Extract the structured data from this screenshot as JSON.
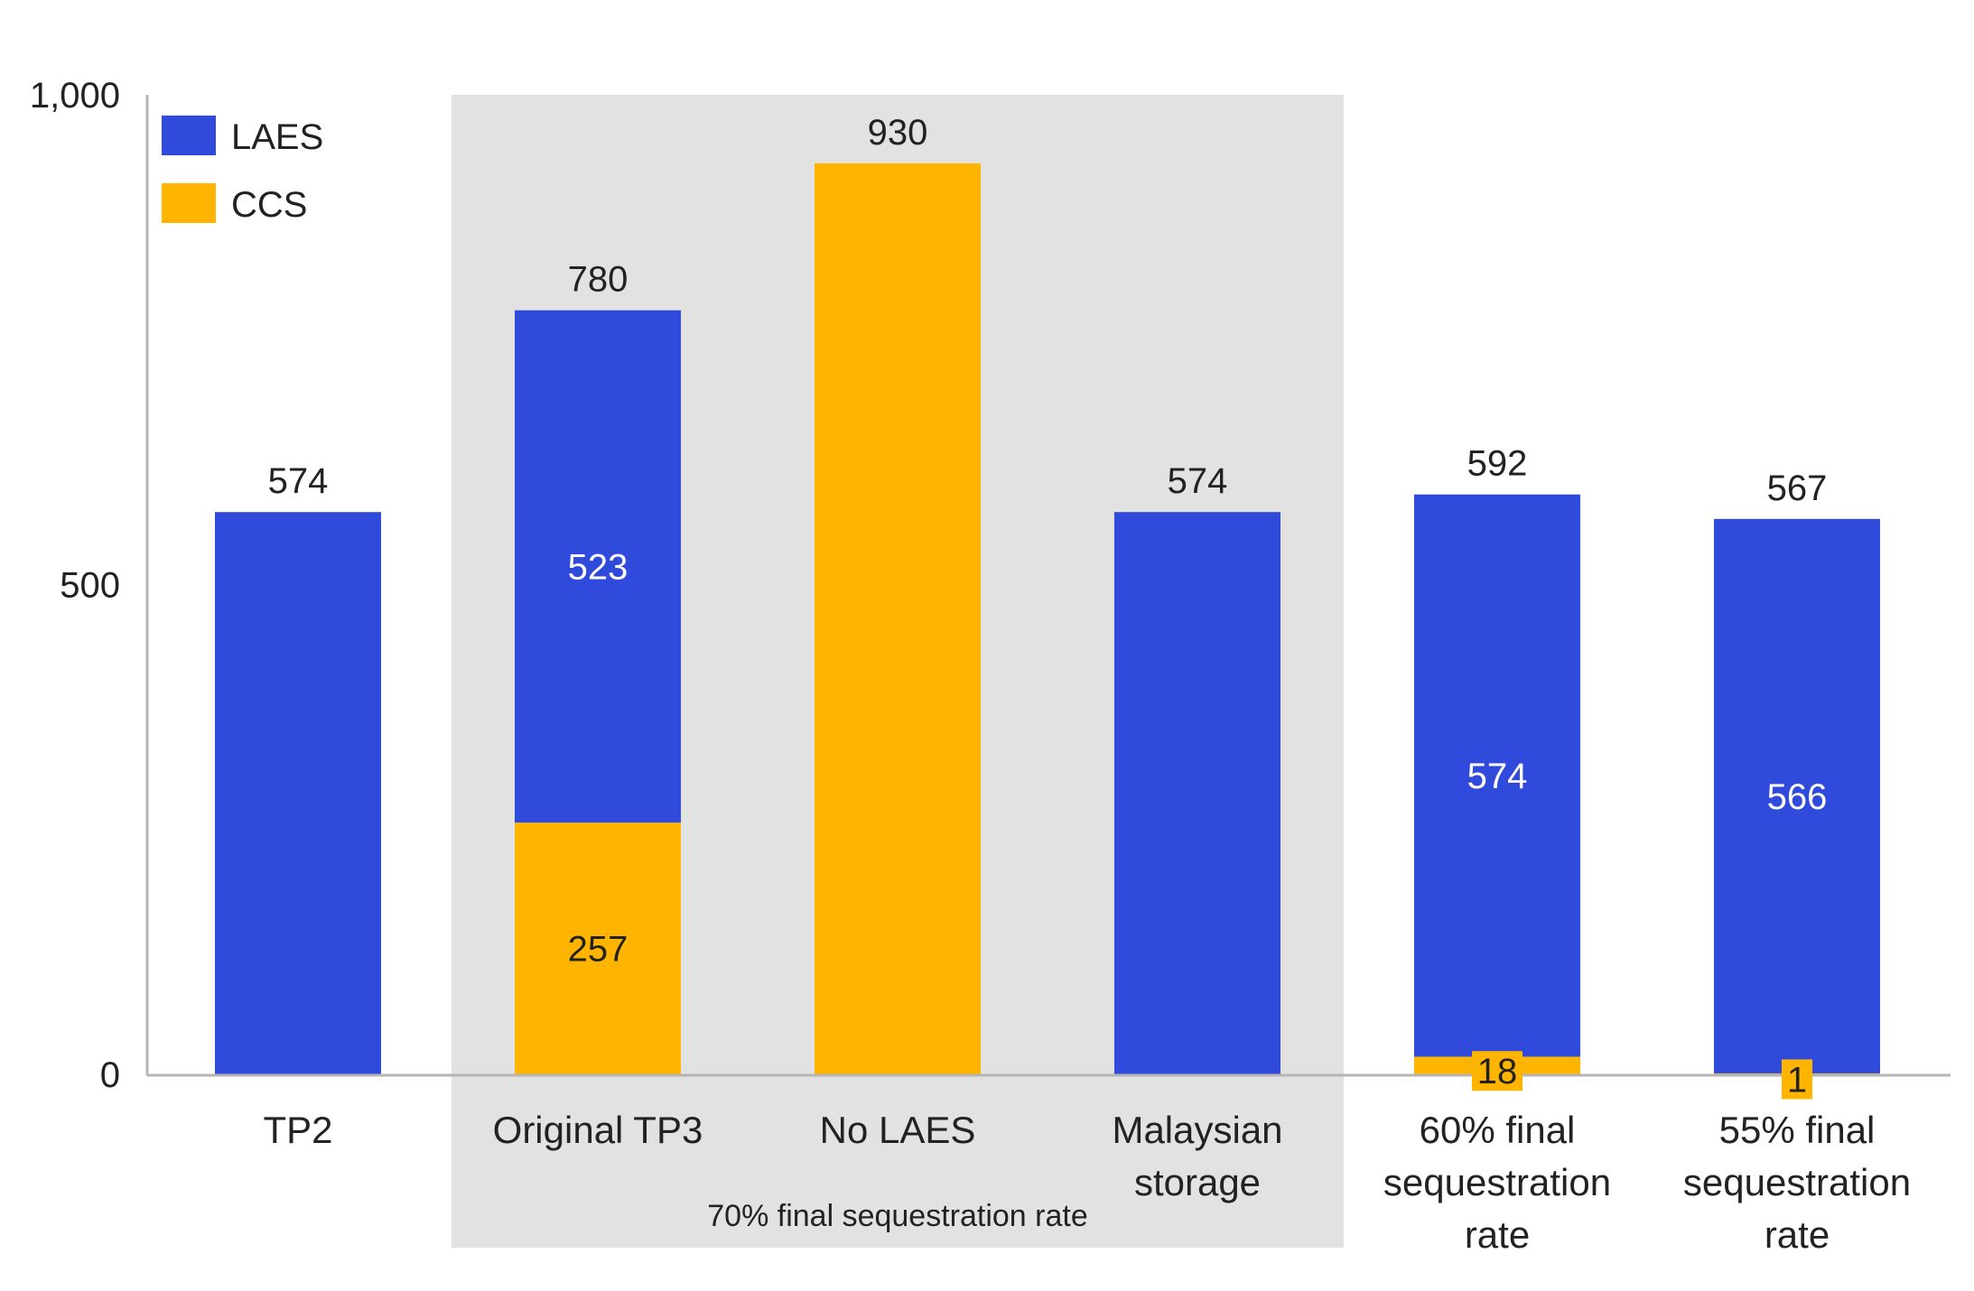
{
  "chart_data": {
    "type": "bar",
    "stacked": true,
    "categories": [
      [
        "TP2"
      ],
      [
        "Original TP3"
      ],
      [
        "No LAES"
      ],
      [
        "Malaysian",
        "storage"
      ],
      [
        "60% final",
        "sequestration",
        "rate"
      ],
      [
        "55% final",
        "sequestration",
        "rate"
      ]
    ],
    "series": [
      {
        "name": "CCS",
        "color": "#FFB400",
        "values": [
          0,
          257,
          930,
          0,
          18,
          1
        ],
        "labels": [
          "",
          "257",
          "",
          "",
          "18",
          "1"
        ]
      },
      {
        "name": "LAES",
        "color": "#304BDB",
        "values": [
          574,
          523,
          0,
          574,
          574,
          566
        ],
        "labels": [
          "",
          "523",
          "",
          "",
          "574",
          "566"
        ]
      }
    ],
    "totals": [
      "574",
      "780",
      "930",
      "574",
      "592",
      "567"
    ],
    "ylim": [
      0,
      1000
    ],
    "yticks": [
      0,
      500,
      1000
    ],
    "ytick_labels": [
      "0",
      "500",
      "1,000"
    ],
    "legend": {
      "placement": "top-left",
      "entries": [
        "LAES",
        "CCS"
      ]
    },
    "group_annotation": {
      "text": "70% final sequestration rate",
      "categories": [
        1,
        2,
        3
      ],
      "shade_color": "#E2E2E2"
    },
    "grid": false,
    "title": "",
    "xlabel": "",
    "ylabel": ""
  }
}
